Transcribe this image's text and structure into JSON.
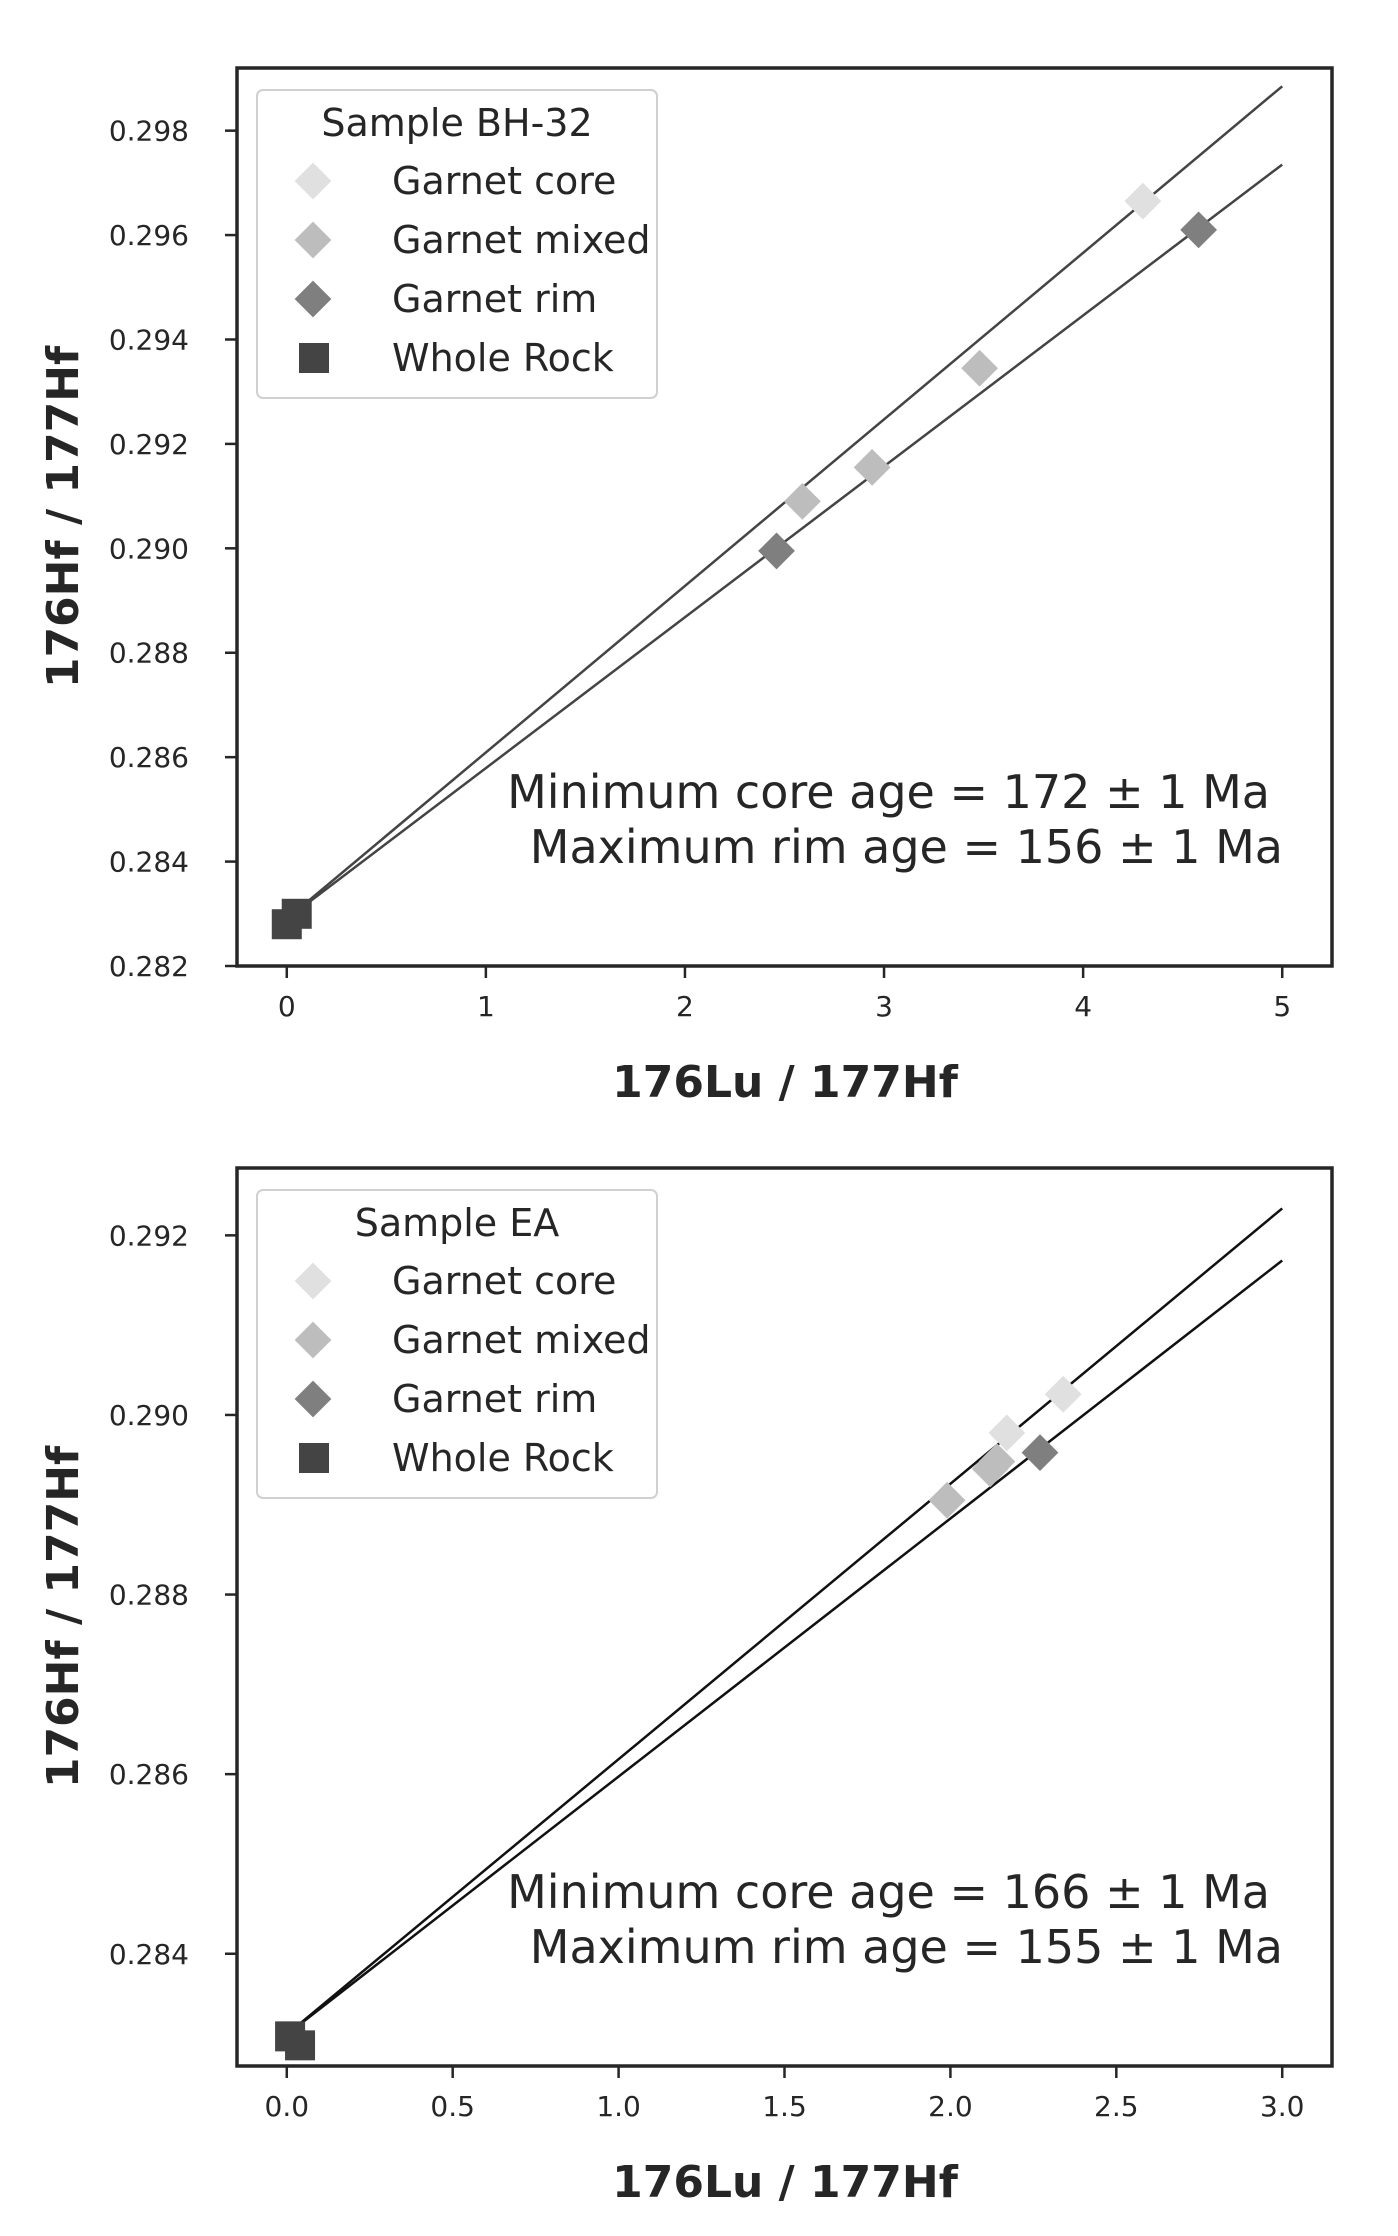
{
  "chart_data": [
    {
      "type": "scatter",
      "xlabel": "176Lu / 177Hf",
      "ylabel": "176Hf / 177Hf",
      "xlim": [
        -0.25,
        5.25
      ],
      "ylim": [
        0.282,
        0.2992
      ],
      "xticks": [
        0,
        1,
        2,
        3,
        4,
        5
      ],
      "xtick_labels": [
        "0",
        "1",
        "2",
        "3",
        "4",
        "5"
      ],
      "yticks": [
        0.282,
        0.284,
        0.286,
        0.288,
        0.29,
        0.292,
        0.294,
        0.296,
        0.298
      ],
      "ytick_labels": [
        "0.282",
        "0.284",
        "0.286",
        "0.288",
        "0.290",
        "0.292",
        "0.294",
        "0.296",
        "0.298"
      ],
      "grid": false,
      "legend": {
        "title": "Sample BH-32",
        "placement": "upper-left",
        "entries": [
          "Garnet core",
          "Garnet mixed",
          "Garnet rim",
          "Whole Rock"
        ]
      },
      "series": [
        {
          "name": "Garnet core",
          "marker": "diamond",
          "color": "#e0e0e0",
          "x": [
            4.3
          ],
          "y": [
            0.29665
          ]
        },
        {
          "name": "Garnet mixed",
          "marker": "diamond",
          "color": "#bdbdbd",
          "x": [
            2.59,
            2.94,
            3.48
          ],
          "y": [
            0.2909,
            0.29155,
            0.29345
          ]
        },
        {
          "name": "Garnet rim",
          "marker": "diamond",
          "color": "#7f7f7f",
          "x": [
            2.46,
            4.58
          ],
          "y": [
            0.28995,
            0.2961
          ]
        },
        {
          "name": "Whole Rock",
          "marker": "square",
          "color": "#444444",
          "x": [
            0.0,
            0.05
          ],
          "y": [
            0.2828,
            0.283
          ]
        }
      ],
      "lines": [
        {
          "x": [
            0.0,
            5.0
          ],
          "y": [
            0.2829,
            0.29885
          ],
          "color": "#444444"
        },
        {
          "x": [
            0.0,
            5.0
          ],
          "y": [
            0.2829,
            0.29735
          ],
          "color": "#444444"
        }
      ],
      "annotations": [
        "Minimum core age = 172 ± 1 Ma",
        "Maximum rim age = 156 ± 1 Ma"
      ]
    },
    {
      "type": "scatter",
      "xlabel": "176Lu / 177Hf",
      "ylabel": "176Hf / 177Hf",
      "xlim": [
        -0.15,
        3.15
      ],
      "ylim": [
        0.28275,
        0.29275
      ],
      "xticks": [
        0,
        0.5,
        1,
        1.5,
        2,
        2.5,
        3
      ],
      "xtick_labels": [
        "0.0",
        "0.5",
        "1.0",
        "1.5",
        "2.0",
        "2.5",
        "3.0"
      ],
      "yticks": [
        0.284,
        0.286,
        0.288,
        0.29,
        0.292
      ],
      "ytick_labels": [
        "0.284",
        "0.286",
        "0.288",
        "0.290",
        "0.292"
      ],
      "grid": false,
      "legend": {
        "title": "Sample EA",
        "placement": "upper-left",
        "entries": [
          "Garnet core",
          "Garnet mixed",
          "Garnet rim",
          "Whole Rock"
        ]
      },
      "series": [
        {
          "name": "Garnet core",
          "marker": "diamond",
          "color": "#e0e0e0",
          "x": [
            2.17,
            2.34
          ],
          "y": [
            0.2898,
            0.29023
          ]
        },
        {
          "name": "Garnet mixed",
          "marker": "diamond",
          "color": "#bdbdbd",
          "x": [
            1.99,
            2.12,
            2.14
          ],
          "y": [
            0.28905,
            0.2894,
            0.28948
          ]
        },
        {
          "name": "Garnet rim",
          "marker": "diamond",
          "color": "#7f7f7f",
          "x": [
            2.27
          ],
          "y": [
            0.28958
          ]
        },
        {
          "name": "Whole Rock",
          "marker": "square",
          "color": "#444444",
          "x": [
            0.01,
            0.04
          ],
          "y": [
            0.28308,
            0.28298
          ]
        }
      ],
      "lines": [
        {
          "x": [
            0.0,
            3.0
          ],
          "y": [
            0.2831,
            0.2923
          ],
          "color": "#111111"
        },
        {
          "x": [
            0.0,
            3.0
          ],
          "y": [
            0.2831,
            0.29172
          ],
          "color": "#111111"
        }
      ],
      "annotations": [
        "Minimum core age = 166 ± 1 Ma",
        "Maximum rim age = 155 ± 1 Ma"
      ]
    }
  ]
}
